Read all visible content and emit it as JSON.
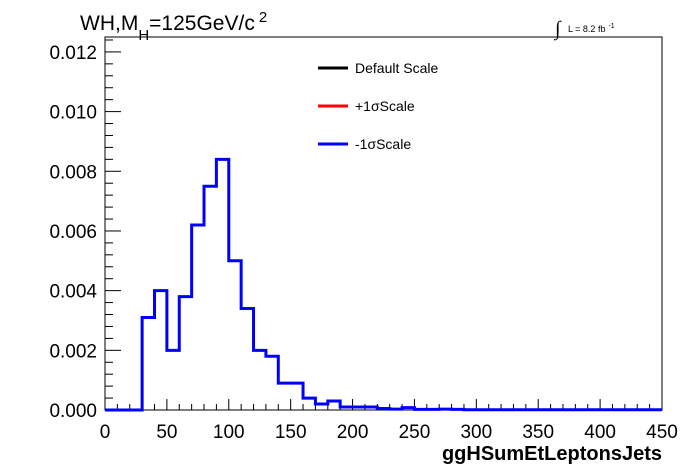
{
  "chart_data": {
    "type": "line",
    "title": {
      "main": "WH,M",
      "subscript": "H",
      "rest": "=125GeV/c",
      "superscript": "2"
    },
    "lumi": {
      "integral": "∫",
      "text": "L = 8.2 fb",
      "superscript": "-1"
    },
    "xlabel": "ggHSumEtLeptonsJets",
    "ylabel": "",
    "xlim": [
      0,
      450
    ],
    "ylim": [
      0,
      0.0125
    ],
    "x_tick_labels": [
      "0",
      "50",
      "100",
      "150",
      "200",
      "250",
      "300",
      "350",
      "400",
      "450"
    ],
    "y_tick_labels": [
      "0.000",
      "0.002",
      "0.004",
      "0.006",
      "0.008",
      "0.010",
      "0.012"
    ],
    "x_ticks": [
      0,
      50,
      100,
      150,
      200,
      250,
      300,
      350,
      400,
      450
    ],
    "y_ticks": [
      0,
      0.002,
      0.004,
      0.006,
      0.008,
      0.01,
      0.012
    ],
    "bin_width": 10,
    "bin_edges_start": 0,
    "legend": [
      {
        "label": "Default Scale",
        "color": "#000000"
      },
      {
        "label": "+1σScale",
        "color": "#ff0000"
      },
      {
        "label": "-1σScale",
        "color": "#0000ff"
      }
    ],
    "series": [
      {
        "name": "-1σScale",
        "color": "#0000ff",
        "values": [
          0,
          0,
          0,
          0.0031,
          0.004,
          0.002,
          0.0038,
          0.0062,
          0.0075,
          0.0084,
          0.005,
          0.0034,
          0.002,
          0.0018,
          0.0009,
          0.0009,
          0.0004,
          0.0002,
          0.0003,
          0.0001,
          0.0001,
          0.0001,
          5e-05,
          3e-05,
          8e-05,
          2e-05,
          2e-05,
          3e-05,
          2e-05,
          1e-05,
          1e-05,
          1e-05,
          1e-05,
          1e-05,
          1e-05,
          1e-05,
          1e-05,
          1e-05,
          1e-05,
          1e-05,
          1e-05,
          1e-05,
          1e-05,
          1e-05,
          1e-05
        ]
      }
    ]
  }
}
